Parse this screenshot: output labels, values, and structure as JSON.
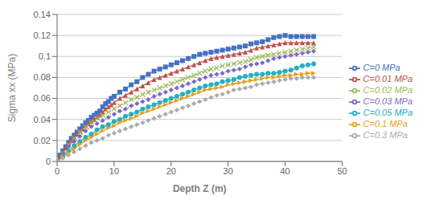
{
  "chart_data": {
    "type": "line",
    "xlabel": "Depth Z (m)",
    "ylabel": "Sigma xx (MPa)",
    "xlim": [
      0,
      50
    ],
    "ylim": [
      0,
      0.14
    ],
    "xticks": [
      0,
      10,
      20,
      30,
      40,
      50
    ],
    "yticks": [
      0,
      0.02,
      0.04,
      0.06,
      0.08,
      0.1,
      0.12,
      0.14
    ],
    "grid": "y",
    "legend": "right",
    "series": [
      {
        "name": "C=0 MPa",
        "color": "#4472C4",
        "marker": "square",
        "line_style": "solid",
        "x": [
          0,
          0.5,
          1,
          1.5,
          2,
          2.5,
          3,
          3.5,
          4,
          4.5,
          5,
          5.5,
          6,
          6.5,
          7,
          7.5,
          8,
          8.5,
          9,
          9.5,
          10,
          11,
          12,
          13,
          14,
          15,
          16,
          17,
          18,
          19,
          20,
          21,
          22,
          23,
          24,
          25,
          26,
          27,
          28,
          29,
          30,
          31,
          32,
          33,
          34,
          35,
          36,
          37,
          38,
          39,
          40,
          41,
          42,
          43,
          44,
          45
        ],
        "values": [
          0,
          0.006,
          0.01,
          0.014,
          0.018,
          0.022,
          0.025,
          0.028,
          0.031,
          0.034,
          0.037,
          0.039,
          0.042,
          0.044,
          0.046,
          0.048,
          0.052,
          0.055,
          0.057,
          0.06,
          0.062,
          0.066,
          0.069,
          0.073,
          0.076,
          0.08,
          0.083,
          0.086,
          0.088,
          0.09,
          0.092,
          0.094,
          0.096,
          0.098,
          0.1,
          0.102,
          0.103,
          0.104,
          0.105,
          0.106,
          0.107,
          0.108,
          0.109,
          0.11,
          0.112,
          0.113,
          0.114,
          0.116,
          0.118,
          0.119,
          0.12,
          0.119,
          0.119,
          0.119,
          0.119,
          0.119
        ]
      },
      {
        "name": "C=0.01 MPa",
        "color": "#C0504D",
        "marker": "triangle",
        "line_style": "solid",
        "x": [
          0,
          0.5,
          1,
          1.5,
          2,
          2.5,
          3,
          3.5,
          4,
          4.5,
          5,
          5.5,
          6,
          6.5,
          7,
          7.5,
          8,
          8.5,
          9,
          9.5,
          10,
          11,
          12,
          13,
          14,
          15,
          16,
          17,
          18,
          19,
          20,
          21,
          22,
          23,
          24,
          25,
          26,
          27,
          28,
          29,
          30,
          31,
          32,
          33,
          34,
          35,
          36,
          37,
          38,
          39,
          40,
          41,
          42,
          43,
          44,
          45
        ],
        "values": [
          0,
          0.005,
          0.009,
          0.013,
          0.017,
          0.02,
          0.023,
          0.026,
          0.029,
          0.031,
          0.034,
          0.036,
          0.038,
          0.04,
          0.042,
          0.044,
          0.047,
          0.05,
          0.052,
          0.054,
          0.056,
          0.06,
          0.063,
          0.066,
          0.069,
          0.072,
          0.075,
          0.078,
          0.08,
          0.082,
          0.084,
          0.086,
          0.088,
          0.09,
          0.092,
          0.094,
          0.096,
          0.098,
          0.099,
          0.1,
          0.101,
          0.102,
          0.103,
          0.104,
          0.106,
          0.108,
          0.109,
          0.11,
          0.111,
          0.112,
          0.113,
          0.113,
          0.113,
          0.113,
          0.113,
          0.113
        ]
      },
      {
        "name": "C=0.02 MPa",
        "color": "#9BBB59",
        "marker": "x",
        "line_style": "dashed",
        "x": [
          0,
          1,
          2,
          3,
          4,
          5,
          6,
          7,
          8,
          9,
          10,
          11,
          12,
          13,
          14,
          15,
          16,
          17,
          18,
          19,
          20,
          21,
          22,
          23,
          24,
          25,
          26,
          27,
          28,
          29,
          30,
          31,
          32,
          33,
          34,
          35,
          36,
          37,
          38,
          39,
          40,
          41,
          42,
          43,
          44,
          45
        ],
        "values": [
          0,
          0.008,
          0.016,
          0.022,
          0.028,
          0.033,
          0.037,
          0.041,
          0.044,
          0.047,
          0.05,
          0.053,
          0.056,
          0.059,
          0.061,
          0.064,
          0.066,
          0.068,
          0.07,
          0.072,
          0.074,
          0.076,
          0.078,
          0.08,
          0.082,
          0.084,
          0.086,
          0.088,
          0.089,
          0.091,
          0.092,
          0.093,
          0.094,
          0.095,
          0.097,
          0.099,
          0.1,
          0.101,
          0.102,
          0.103,
          0.104,
          0.105,
          0.106,
          0.107,
          0.108,
          0.109
        ]
      },
      {
        "name": "C=0.03 MPa",
        "color": "#7B68C8",
        "marker": "diamond",
        "line_style": "dotted",
        "x": [
          0,
          1,
          2,
          3,
          4,
          5,
          6,
          7,
          8,
          9,
          10,
          11,
          12,
          13,
          14,
          15,
          16,
          17,
          18,
          19,
          20,
          21,
          22,
          23,
          24,
          25,
          26,
          27,
          28,
          29,
          30,
          31,
          32,
          33,
          34,
          35,
          36,
          37,
          38,
          39,
          40,
          41,
          42,
          43,
          44,
          45
        ],
        "values": [
          0,
          0.007,
          0.014,
          0.019,
          0.024,
          0.029,
          0.033,
          0.036,
          0.039,
          0.042,
          0.045,
          0.048,
          0.05,
          0.053,
          0.055,
          0.057,
          0.059,
          0.062,
          0.064,
          0.066,
          0.068,
          0.07,
          0.072,
          0.074,
          0.076,
          0.078,
          0.08,
          0.082,
          0.083,
          0.084,
          0.086,
          0.087,
          0.088,
          0.09,
          0.092,
          0.093,
          0.094,
          0.096,
          0.098,
          0.099,
          0.1,
          0.101,
          0.102,
          0.103,
          0.104,
          0.105
        ]
      },
      {
        "name": "C=0.05 MPa",
        "color": "#23B0C4",
        "marker": "circle",
        "line_style": "solid",
        "x": [
          0,
          1,
          2,
          3,
          4,
          5,
          6,
          7,
          8,
          9,
          10,
          11,
          12,
          13,
          14,
          15,
          16,
          17,
          18,
          19,
          20,
          21,
          22,
          23,
          24,
          25,
          26,
          27,
          28,
          29,
          30,
          31,
          32,
          33,
          34,
          35,
          36,
          37,
          38,
          39,
          40,
          41,
          42,
          43,
          44,
          45
        ],
        "values": [
          0,
          0.005,
          0.01,
          0.015,
          0.019,
          0.023,
          0.026,
          0.03,
          0.033,
          0.035,
          0.038,
          0.04,
          0.043,
          0.045,
          0.047,
          0.05,
          0.052,
          0.054,
          0.056,
          0.058,
          0.06,
          0.062,
          0.064,
          0.066,
          0.068,
          0.07,
          0.072,
          0.073,
          0.074,
          0.076,
          0.077,
          0.078,
          0.08,
          0.081,
          0.082,
          0.083,
          0.083,
          0.084,
          0.084,
          0.085,
          0.086,
          0.087,
          0.089,
          0.091,
          0.092,
          0.093
        ]
      },
      {
        "name": "C=0.1 MPa",
        "color": "#E6A020",
        "marker": "triangle-right",
        "line_style": "solid",
        "x": [
          0,
          1,
          2,
          3,
          4,
          5,
          6,
          7,
          8,
          9,
          10,
          11,
          12,
          13,
          14,
          15,
          16,
          17,
          18,
          19,
          20,
          21,
          22,
          23,
          24,
          25,
          26,
          27,
          28,
          29,
          30,
          31,
          32,
          33,
          34,
          35,
          36,
          37,
          38,
          39,
          40,
          41,
          42,
          43,
          44,
          45
        ],
        "values": [
          0,
          0.004,
          0.008,
          0.012,
          0.016,
          0.02,
          0.023,
          0.026,
          0.029,
          0.032,
          0.034,
          0.037,
          0.039,
          0.041,
          0.043,
          0.046,
          0.048,
          0.05,
          0.052,
          0.054,
          0.056,
          0.058,
          0.06,
          0.062,
          0.064,
          0.066,
          0.068,
          0.069,
          0.07,
          0.071,
          0.073,
          0.074,
          0.075,
          0.076,
          0.077,
          0.078,
          0.079,
          0.08,
          0.08,
          0.081,
          0.082,
          0.082,
          0.083,
          0.083,
          0.084,
          0.084
        ]
      },
      {
        "name": "C=0.3 MPa",
        "color": "#ABABAB",
        "marker": "diamond",
        "line_style": "dotted",
        "x": [
          0,
          1,
          2,
          3,
          4,
          5,
          6,
          7,
          8,
          9,
          10,
          11,
          12,
          13,
          14,
          15,
          16,
          17,
          18,
          19,
          20,
          21,
          22,
          23,
          24,
          25,
          26,
          27,
          28,
          29,
          30,
          31,
          32,
          33,
          34,
          35,
          36,
          37,
          38,
          39,
          40,
          41,
          42,
          43,
          44,
          45
        ],
        "values": [
          0,
          0.003,
          0.006,
          0.009,
          0.012,
          0.015,
          0.018,
          0.02,
          0.022,
          0.025,
          0.027,
          0.029,
          0.031,
          0.033,
          0.035,
          0.037,
          0.039,
          0.041,
          0.043,
          0.045,
          0.047,
          0.049,
          0.051,
          0.053,
          0.055,
          0.057,
          0.059,
          0.061,
          0.063,
          0.064,
          0.066,
          0.068,
          0.069,
          0.07,
          0.071,
          0.073,
          0.074,
          0.075,
          0.076,
          0.077,
          0.078,
          0.079,
          0.079,
          0.08,
          0.08,
          0.08
        ]
      }
    ]
  }
}
